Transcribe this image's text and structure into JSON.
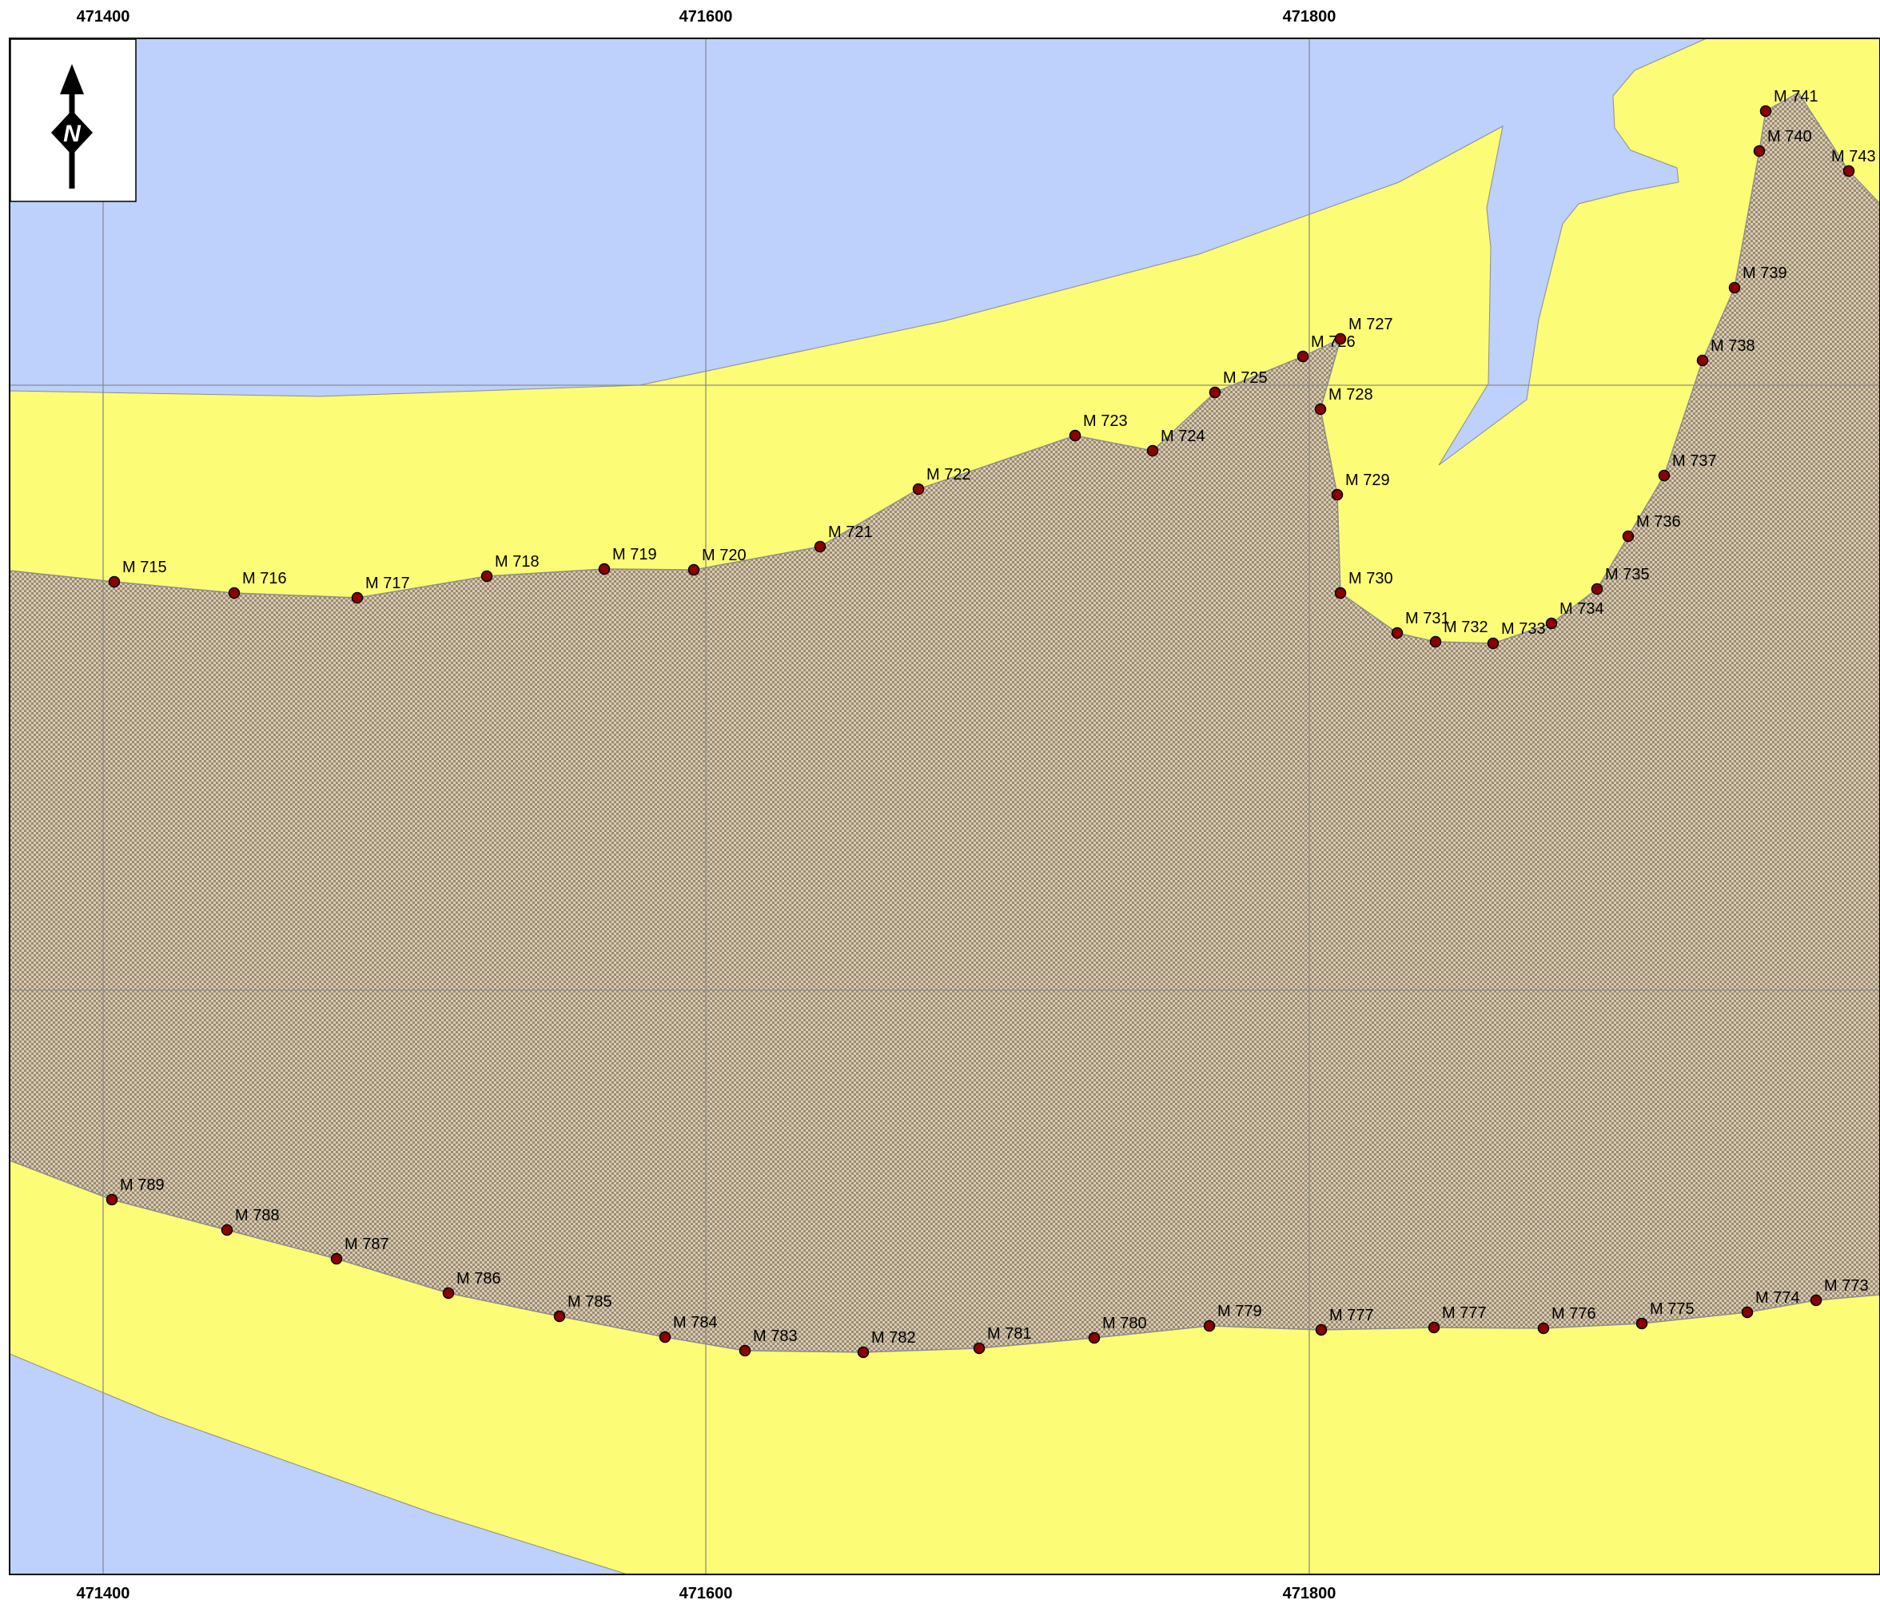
{
  "map": {
    "colors": {
      "water": "#bed0fc",
      "land": "#fcfc76",
      "zone_base": "#d9ccb4",
      "zone_dot": "#9b8a72",
      "marker_fill": "#8b0000",
      "grid": "#8c8c8c"
    },
    "easting_labels_top": [
      "471400",
      "471600",
      "471800"
    ],
    "easting_labels_bottom": [
      "471400",
      "471600",
      "471800"
    ],
    "north_arrow": {
      "letter": "N",
      "icon": "north-arrow-icon"
    },
    "markers_north": [
      "M 715",
      "M 716",
      "M 717",
      "M 718",
      "M 719",
      "M 720",
      "M 721",
      "M 722",
      "M 723",
      "M 724",
      "M 725",
      "M 726",
      "M 727",
      "M 728",
      "M 729",
      "M 730",
      "M 731",
      "M 732",
      "M 733",
      "M 734",
      "M 735",
      "M 736",
      "M 737",
      "M 738",
      "M 739",
      "M 740",
      "M 741",
      "M 743"
    ],
    "markers_south": [
      "M 789",
      "M 788",
      "M 787",
      "M 786",
      "M 785",
      "M 784",
      "M 783",
      "M 782",
      "M 781",
      "M 780",
      "M 779",
      "M 777",
      "M 777",
      "M 776",
      "M 775",
      "M 774",
      "M 773"
    ]
  }
}
